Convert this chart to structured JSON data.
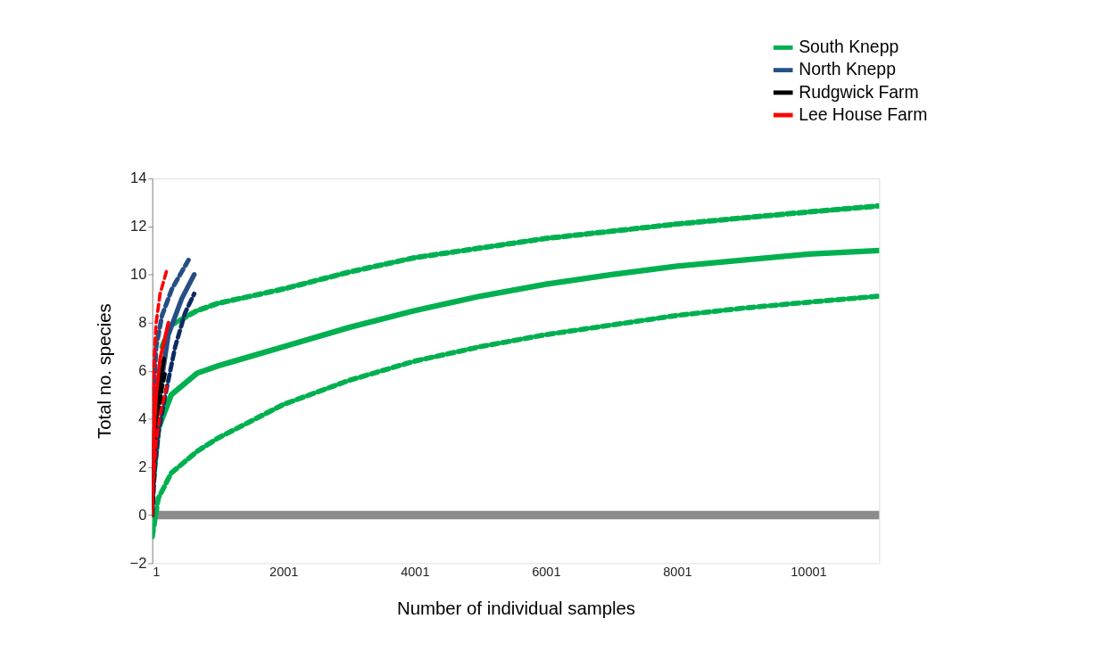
{
  "chart_data": {
    "type": "line",
    "xlabel": "Number of individual samples",
    "ylabel": "Total no. species",
    "xlim": [
      1,
      11080
    ],
    "xticks": [
      1,
      2001,
      4001,
      6001,
      8001,
      10001
    ],
    "ylim": [
      -2,
      14
    ],
    "yticks": [
      -2,
      0,
      2,
      4,
      6,
      8,
      10,
      12,
      14
    ],
    "grid": false,
    "legend": "top right",
    "marker": "none",
    "ref_lines": [
      {
        "axis": "y",
        "value": 0,
        "color": "#8c8c8c"
      }
    ],
    "series": [
      {
        "name": "South Knepp",
        "color": "#00b050",
        "line_style": "solid",
        "x": [
          1,
          93,
          290,
          685,
          1001,
          2001,
          3001,
          4001,
          5001,
          6001,
          7001,
          8001,
          9001,
          10001,
          11080
        ],
        "values": [
          1,
          3.6,
          5.0,
          5.9,
          6.2,
          7.0,
          7.8,
          8.5,
          9.1,
          9.6,
          10.0,
          10.35,
          10.6,
          10.85,
          11.0
        ]
      },
      {
        "color": "#00b050",
        "line_style": "dashed",
        "x": [
          150,
          290,
          685,
          1001,
          2001,
          3001,
          4001,
          5001,
          6001,
          7001,
          8001,
          9001,
          10001,
          11080
        ],
        "values": [
          7.0,
          7.9,
          8.5,
          8.8,
          9.4,
          10.1,
          10.7,
          11.1,
          11.5,
          11.8,
          12.1,
          12.35,
          12.6,
          12.85
        ]
      },
      {
        "color": "#00b050",
        "line_style": "dashed",
        "x": [
          1,
          93,
          290,
          685,
          1001,
          2001,
          3001,
          4001,
          5001,
          6001,
          7001,
          8001,
          9001,
          10001,
          11080
        ],
        "values": [
          -0.9,
          0.7,
          1.75,
          2.65,
          3.2,
          4.6,
          5.6,
          6.4,
          7.0,
          7.5,
          7.9,
          8.3,
          8.6,
          8.85,
          9.1
        ]
      },
      {
        "name": "North Knepp",
        "color": "#264f84",
        "line_style": "solid",
        "x": [
          1,
          20,
          60,
          114,
          246,
          450,
          640
        ],
        "values": [
          0.3,
          2.5,
          4.2,
          5.1,
          7.5,
          9.0,
          10.0
        ]
      },
      {
        "color": "#264f84",
        "line_style": "dashed",
        "x": [
          1,
          20,
          60,
          150,
          300,
          553
        ],
        "values": [
          0.8,
          5.0,
          7.0,
          8.3,
          9.4,
          10.6
        ]
      },
      {
        "color": "#0d2b62",
        "line_style": "dashed",
        "x": [
          1,
          40,
          100,
          200,
          350,
          500,
          640
        ],
        "values": [
          0,
          2.0,
          3.5,
          5.0,
          7.0,
          8.4,
          9.2
        ]
      },
      {
        "name": "Rudgwick Farm",
        "color": "#000000",
        "line_style": "solid",
        "x": [
          1,
          30,
          80,
          180
        ],
        "values": [
          0.3,
          3.5,
          5.0,
          6.5
        ]
      },
      {
        "color": "#000000",
        "line_style": "dashed",
        "x": [
          1,
          30,
          66,
          150,
          200
        ],
        "values": [
          0,
          2.3,
          3.7,
          5.3,
          5.95
        ]
      },
      {
        "name": "Lee House Farm",
        "color": "#ff0000",
        "line_style": "solid",
        "x": [
          1,
          20,
          60,
          120,
          246
        ],
        "values": [
          0.3,
          3.0,
          5.0,
          6.5,
          8.0
        ]
      },
      {
        "color": "#ff0000",
        "line_style": "dashed",
        "x": [
          1,
          20,
          60,
          120,
          224
        ],
        "values": [
          1.0,
          6.0,
          8.0,
          9.2,
          10.2
        ]
      },
      {
        "color": "#ff0000",
        "line_style": "dashed",
        "x": [
          1,
          20,
          60,
          120,
          224
        ],
        "values": [
          0,
          1.5,
          3.0,
          4.2,
          5.35
        ]
      }
    ]
  }
}
